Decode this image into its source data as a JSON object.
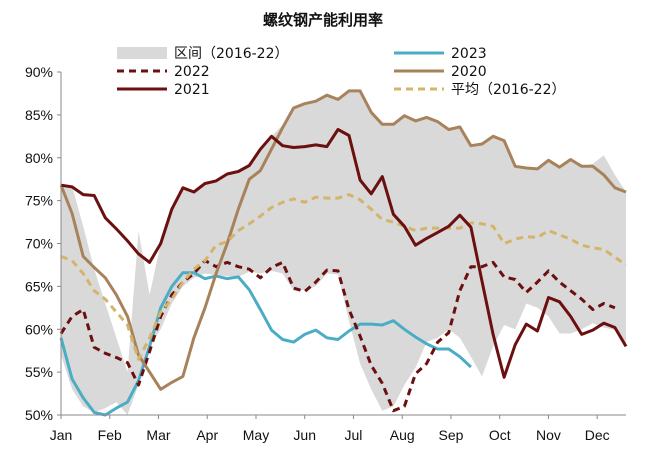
{
  "chart_data": {
    "type": "line",
    "title": "螺纹钢产能利用率",
    "xlabel": "",
    "ylabel": "",
    "ylim": [
      50,
      90
    ],
    "y_ticks": [
      50,
      55,
      60,
      65,
      70,
      75,
      80,
      85,
      90
    ],
    "y_tick_labels": [
      "50%",
      "55%",
      "60%",
      "65%",
      "70%",
      "75%",
      "80%",
      "85%",
      "90%"
    ],
    "x_range": [
      1,
      52
    ],
    "month_ticks": [
      1,
      5.4,
      9.8,
      14.2,
      18.6,
      23,
      27.4,
      31.8,
      36.2,
      40.6,
      45,
      49.4
    ],
    "month_labels": [
      "Jan",
      "Feb",
      "Mar",
      "Apr",
      "May",
      "Jun",
      "Jul",
      "Aug",
      "Sep",
      "Oct",
      "Nov",
      "Dec"
    ],
    "grid": false,
    "legend_position": "top",
    "band": {
      "name": "区间（2016-22）",
      "color": "#d9d9d9",
      "weeks": [
        1,
        2,
        3,
        4,
        5,
        6,
        7,
        8,
        9,
        10,
        11,
        12,
        13,
        14,
        15,
        16,
        17,
        18,
        19,
        20,
        21,
        22,
        23,
        24,
        25,
        26,
        27,
        28,
        29,
        30,
        31,
        32,
        33,
        34,
        35,
        36,
        37,
        38,
        39,
        40,
        41,
        42,
        43,
        44,
        45,
        46,
        47,
        48,
        49,
        50,
        51,
        52
      ],
      "upper": [
        76.8,
        76.7,
        72.0,
        67.0,
        63.0,
        59.0,
        55.0,
        71.5,
        64.0,
        70.0,
        74.0,
        76.5,
        76.0,
        77.0,
        77.5,
        78.0,
        78.5,
        79.0,
        81.0,
        82.5,
        83.8,
        85.8,
        86.3,
        86.6,
        87.3,
        86.8,
        87.8,
        87.9,
        85.3,
        83.9,
        83.9,
        84.9,
        84.3,
        84.7,
        84.2,
        83.3,
        83.6,
        81.4,
        81.6,
        82.5,
        82.0,
        79.0,
        78.8,
        78.7,
        79.7,
        78.9,
        79.8,
        79.0,
        79.3,
        80.3,
        78.0,
        76.0
      ],
      "lower": [
        57.0,
        53.0,
        51.0,
        50.3,
        50.8,
        51.5,
        50.0,
        53.5,
        58.0,
        60.0,
        63.0,
        65.0,
        66.0,
        66.5,
        66.3,
        66.2,
        66.1,
        66.7,
        66.5,
        66.8,
        66.5,
        64.5,
        64.6,
        65.0,
        66.5,
        66.4,
        61.0,
        56.0,
        53.0,
        50.5,
        51.0,
        53.5,
        55.5,
        58.5,
        59.0,
        60.0,
        59.0,
        56.8,
        54.5,
        58.0,
        60.5,
        60.0,
        63.0,
        62.5,
        61.5,
        59.5,
        59.5,
        60.0,
        60.7,
        60.2,
        59.9,
        58.0
      ]
    },
    "series": [
      {
        "name": "2023",
        "color": "#4bacc6",
        "style": "solid",
        "x": [
          1,
          2,
          3,
          4,
          5,
          6,
          7,
          8,
          9,
          10,
          11,
          12,
          13,
          14,
          15,
          16,
          17,
          18,
          19,
          20,
          21,
          22,
          23,
          24,
          25,
          26,
          27,
          28,
          29,
          30,
          31,
          32,
          33,
          34,
          35,
          36,
          37,
          38
        ],
        "values": [
          59.0,
          54.2,
          52.0,
          50.3,
          50.0,
          50.8,
          51.5,
          54.0,
          58.0,
          62.5,
          65.0,
          66.6,
          66.6,
          65.9,
          66.2,
          65.9,
          66.1,
          64.6,
          62.3,
          59.9,
          58.8,
          58.5,
          59.4,
          59.9,
          59.0,
          58.8,
          59.8,
          60.6,
          60.6,
          60.5,
          61.0,
          60.0,
          59.1,
          58.3,
          57.7,
          57.7,
          56.8,
          55.6
        ]
      },
      {
        "name": "2022",
        "color": "#6b0f0f",
        "style": "dashed",
        "x": [
          1,
          2,
          3,
          4,
          5,
          6,
          7,
          8,
          9,
          10,
          11,
          12,
          13,
          14,
          15,
          16,
          17,
          18,
          19,
          20,
          21,
          22,
          23,
          24,
          25,
          26,
          27,
          28,
          29,
          30,
          31,
          32,
          33,
          34,
          35,
          36,
          37,
          38,
          39,
          40,
          41,
          42,
          43,
          44,
          45,
          46,
          47,
          48,
          49,
          50,
          51
        ],
        "values": [
          59.5,
          61.5,
          62.3,
          57.9,
          57.2,
          56.7,
          56.1,
          53.5,
          57.4,
          61.5,
          64.0,
          65.5,
          66.5,
          68.0,
          67.3,
          67.8,
          67.3,
          67.0,
          66.0,
          67.2,
          67.8,
          64.8,
          64.4,
          65.5,
          66.9,
          66.8,
          62.3,
          59.2,
          55.8,
          53.7,
          50.5,
          51.0,
          54.8,
          56.0,
          58.5,
          59.6,
          64.5,
          67.3,
          67.3,
          67.8,
          66.1,
          65.8,
          64.3,
          65.5,
          66.8,
          65.5,
          64.5,
          63.5,
          62.3,
          63.0,
          62.5
        ]
      },
      {
        "name": "2020",
        "color": "#a8825a",
        "style": "solid",
        "x": [
          1,
          2,
          3,
          4,
          5,
          6,
          7,
          8,
          9,
          10,
          11,
          12,
          13,
          14,
          15,
          16,
          17,
          18,
          19,
          20,
          21,
          22,
          23,
          24,
          25,
          26,
          27,
          28,
          29,
          30,
          31,
          32,
          33,
          34,
          35,
          36,
          37,
          38,
          39,
          40,
          41,
          42,
          43,
          44,
          45,
          46,
          47,
          48,
          49,
          50,
          51,
          52
        ],
        "values": [
          76.8,
          73.5,
          68.5,
          67.2,
          66.0,
          64.0,
          61.5,
          57.0,
          55.0,
          53.0,
          53.8,
          54.5,
          59.0,
          62.5,
          66.5,
          70.0,
          74.0,
          77.5,
          78.5,
          81.0,
          83.5,
          85.8,
          86.3,
          86.6,
          87.3,
          86.8,
          87.8,
          87.8,
          85.3,
          83.9,
          83.9,
          84.9,
          84.3,
          84.7,
          84.2,
          83.3,
          83.6,
          81.4,
          81.6,
          82.5,
          82.0,
          79.0,
          78.8,
          78.7,
          79.7,
          78.9,
          79.8,
          79.0,
          79.0,
          78.0,
          76.5,
          76.0
        ]
      },
      {
        "name": "平均（2016-22）",
        "color": "#d4b46a",
        "style": "dashed",
        "x": [
          1,
          2,
          3,
          4,
          5,
          6,
          7,
          8,
          9,
          10,
          11,
          12,
          13,
          14,
          15,
          16,
          17,
          18,
          19,
          20,
          21,
          22,
          23,
          24,
          25,
          26,
          27,
          28,
          29,
          30,
          31,
          32,
          33,
          34,
          35,
          36,
          37,
          38,
          39,
          40,
          41,
          42,
          43,
          44,
          45,
          46,
          47,
          48,
          49,
          50,
          51,
          52
        ],
        "values": [
          68.5,
          68.0,
          66.5,
          64.5,
          63.5,
          62.0,
          60.5,
          56.5,
          59.0,
          62.0,
          63.5,
          65.5,
          67.0,
          68.0,
          69.8,
          70.2,
          71.5,
          72.3,
          73.2,
          74.2,
          74.8,
          75.2,
          74.8,
          75.4,
          75.3,
          75.3,
          75.7,
          75.1,
          74.0,
          72.8,
          72.5,
          72.0,
          71.5,
          71.8,
          71.8,
          71.8,
          71.8,
          72.4,
          72.3,
          72.0,
          70.0,
          70.5,
          70.8,
          70.7,
          71.5,
          71.0,
          70.5,
          69.8,
          69.5,
          69.3,
          68.4,
          67.5
        ]
      },
      {
        "name": "2021",
        "color": "#6b0f0f",
        "style": "solid",
        "x": [
          1,
          2,
          3,
          4,
          5,
          6,
          7,
          8,
          9,
          10,
          11,
          12,
          13,
          14,
          15,
          16,
          17,
          18,
          19,
          20,
          21,
          22,
          23,
          24,
          25,
          26,
          27,
          28,
          29,
          30,
          31,
          32,
          33,
          34,
          35,
          36,
          37,
          38,
          39,
          40,
          41,
          42,
          43,
          44,
          45,
          46,
          47,
          48,
          49,
          50,
          51,
          52
        ],
        "values": [
          76.8,
          76.6,
          75.7,
          75.6,
          73.0,
          71.7,
          70.3,
          68.8,
          67.8,
          70.0,
          74.0,
          76.5,
          76.0,
          77.0,
          77.3,
          78.1,
          78.4,
          79.1,
          81.0,
          82.5,
          81.4,
          81.2,
          81.3,
          81.5,
          81.3,
          83.3,
          82.6,
          77.4,
          75.8,
          77.8,
          73.4,
          72.0,
          69.8,
          70.6,
          71.3,
          72.0,
          73.3,
          71.9,
          65.6,
          59.4,
          54.4,
          58.2,
          60.6,
          59.8,
          63.7,
          63.2,
          61.5,
          59.4,
          59.9,
          60.7,
          60.2,
          58.0
        ]
      }
    ],
    "legend": [
      {
        "label": "区间（2016-22）",
        "kind": "band",
        "color": "#d9d9d9"
      },
      {
        "label": "2023",
        "kind": "line",
        "color": "#4bacc6",
        "style": "solid"
      },
      {
        "label": "2022",
        "kind": "line",
        "color": "#6b0f0f",
        "style": "dashed"
      },
      {
        "label": "2020",
        "kind": "line",
        "color": "#a8825a",
        "style": "solid"
      },
      {
        "label": "2021",
        "kind": "line",
        "color": "#6b0f0f",
        "style": "solid"
      },
      {
        "label": "平均（2016-22）",
        "kind": "line",
        "color": "#d4b46a",
        "style": "dashed"
      }
    ]
  }
}
